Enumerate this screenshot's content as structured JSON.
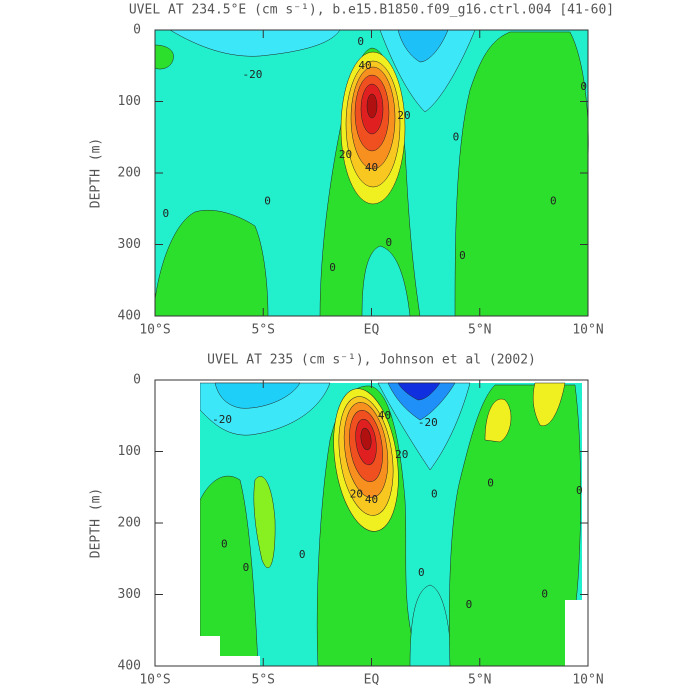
{
  "chart_data": [
    {
      "type": "contour",
      "title": "UVEL AT 234.5°E (cm s⁻¹), b.e15.B1850.f09_g16.ctrl.004 [41-60]",
      "y_label": "DEPTH (m)",
      "xlim": [
        -10,
        10
      ],
      "ylim": [
        400,
        0
      ],
      "xticks": [
        {
          "value": -10,
          "label": "10°S"
        },
        {
          "value": -5,
          "label": "5°S"
        },
        {
          "value": 0,
          "label": "EQ"
        },
        {
          "value": 5,
          "label": "5°N"
        },
        {
          "value": 10,
          "label": "10°N"
        }
      ],
      "yticks": [
        0,
        100,
        200,
        300,
        400
      ],
      "contour_labels": [
        {
          "x": -5.5,
          "y": 63,
          "value": -20
        },
        {
          "x": -0.3,
          "y": 50,
          "value": 40
        },
        {
          "x": 0,
          "y": 193,
          "value": 40
        },
        {
          "x": -0.5,
          "y": 17,
          "value": 0
        },
        {
          "x": 0.8,
          "y": 298,
          "value": 0
        },
        {
          "x": -1.8,
          "y": 333,
          "value": 0
        },
        {
          "x": -4.8,
          "y": 240,
          "value": 0
        },
        {
          "x": -9.5,
          "y": 257,
          "value": 0
        },
        {
          "x": 3.9,
          "y": 150,
          "value": 0
        },
        {
          "x": 8.4,
          "y": 240,
          "value": 0
        },
        {
          "x": 4.2,
          "y": 316,
          "value": 0
        },
        {
          "x": 9.8,
          "y": 80,
          "value": 0
        },
        {
          "x": 1.5,
          "y": 120,
          "value": 20
        },
        {
          "x": -1.2,
          "y": 175,
          "value": 20
        }
      ]
    },
    {
      "type": "contour",
      "title": "UVEL AT 235 (cm s⁻¹), Johnson et al (2002)",
      "y_label": "DEPTH (m)",
      "xlim": [
        -10,
        10
      ],
      "ylim": [
        400,
        0
      ],
      "xticks": [
        {
          "value": -10,
          "label": "10°S"
        },
        {
          "value": -5,
          "label": "5°S"
        },
        {
          "value": 0,
          "label": "EQ"
        },
        {
          "value": 5,
          "label": "5°N"
        },
        {
          "value": 10,
          "label": "10°N"
        }
      ],
      "yticks": [
        0,
        100,
        200,
        300,
        400
      ],
      "contour_labels": [
        {
          "x": -6.9,
          "y": 56,
          "value": -20
        },
        {
          "x": 0,
          "y": 168,
          "value": 40
        },
        {
          "x": 0.6,
          "y": 50,
          "value": 40
        },
        {
          "x": -0.7,
          "y": 160,
          "value": 20
        },
        {
          "x": 1.4,
          "y": 105,
          "value": 20
        },
        {
          "x": 2.6,
          "y": 60,
          "value": -20
        },
        {
          "x": -6.8,
          "y": 230,
          "value": 0
        },
        {
          "x": -5.8,
          "y": 263,
          "value": 0
        },
        {
          "x": -3.2,
          "y": 245,
          "value": 0
        },
        {
          "x": 2.9,
          "y": 160,
          "value": 0
        },
        {
          "x": 2.3,
          "y": 270,
          "value": 0
        },
        {
          "x": 5.5,
          "y": 145,
          "value": 0
        },
        {
          "x": 8,
          "y": 300,
          "value": 0
        },
        {
          "x": 9.6,
          "y": 155,
          "value": 0
        },
        {
          "x": 4.5,
          "y": 315,
          "value": 0
        }
      ]
    }
  ]
}
